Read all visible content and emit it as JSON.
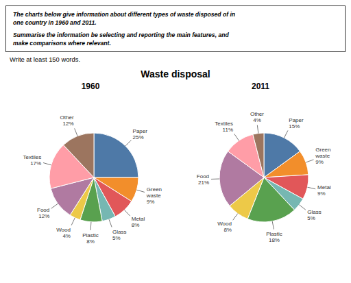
{
  "title": "Waste disposal",
  "annotations": [
    "The charts below give information about different types of waste disposed of in",
    "one country in 1960 and 2011.",
    "Summarise the information be selecting and reporting the main features, and",
    "make comparisons where relevant.",
    "Write at least 150 words."
  ],
  "chart_data": [
    {
      "type": "pie",
      "title": "1960",
      "categories": [
        "Paper",
        "Green\nwaste",
        "Metal",
        "Glass",
        "Plastic",
        "Wood",
        "Food",
        "Textiles",
        "Other"
      ],
      "values": [
        25,
        9,
        8,
        5,
        8,
        4,
        12,
        17,
        12
      ],
      "value_labels": [
        "25%",
        "9%",
        "8%",
        "5%",
        "8%",
        "4%",
        "12%",
        "17%",
        "12%"
      ],
      "colors": [
        "#4e79a7",
        "#f28e2b",
        "#e15759",
        "#76b7b2",
        "#59a14f",
        "#edc948",
        "#b07aa1",
        "#ff9da7",
        "#9c755f"
      ],
      "data_labels": true
    },
    {
      "type": "pie",
      "title": "2011",
      "categories": [
        "Paper",
        "Green\nwaste",
        "Metal",
        "Glass",
        "Plastic",
        "Wood",
        "Food",
        "Textiles",
        "Other"
      ],
      "values": [
        15,
        9,
        9,
        5,
        18,
        8,
        21,
        11,
        4
      ],
      "value_labels": [
        "15%",
        "9%",
        "9%",
        "5%",
        "18%",
        "8%",
        "21%",
        "11%",
        "4%"
      ],
      "colors": [
        "#4e79a7",
        "#f28e2b",
        "#e15759",
        "#76b7b2",
        "#59a14f",
        "#edc948",
        "#b07aa1",
        "#ff9da7",
        "#9c755f"
      ],
      "data_labels": true
    }
  ]
}
